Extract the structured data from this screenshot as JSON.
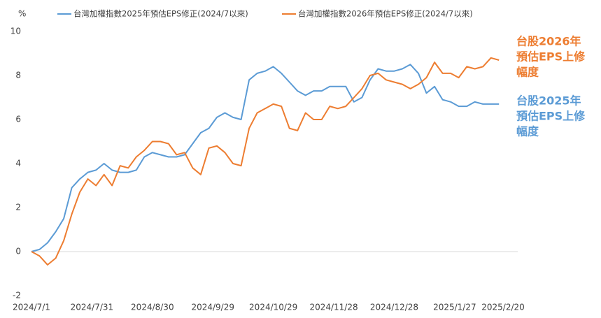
{
  "chart_data": {
    "type": "line",
    "y_unit": "%",
    "x": [
      "2024/7/1",
      "2024/7/5",
      "2024/7/9",
      "2024/7/13",
      "2024/7/17",
      "2024/7/21",
      "2024/7/25",
      "2024/7/29",
      "2024/8/2",
      "2024/8/6",
      "2024/8/10",
      "2024/8/14",
      "2024/8/18",
      "2024/8/22",
      "2024/8/26",
      "2024/8/30",
      "2024/9/3",
      "2024/9/7",
      "2024/9/11",
      "2024/9/15",
      "2024/9/19",
      "2024/9/23",
      "2024/9/27",
      "2024/10/1",
      "2024/10/5",
      "2024/10/9",
      "2024/10/13",
      "2024/10/17",
      "2024/10/21",
      "2024/10/25",
      "2024/10/29",
      "2024/11/2",
      "2024/11/6",
      "2024/11/10",
      "2024/11/14",
      "2024/11/18",
      "2024/11/22",
      "2024/11/26",
      "2024/11/30",
      "2024/12/4",
      "2024/12/8",
      "2024/12/12",
      "2024/12/16",
      "2024/12/20",
      "2024/12/24",
      "2024/12/28",
      "2025/1/1",
      "2025/1/5",
      "2025/1/9",
      "2025/1/13",
      "2025/1/17",
      "2025/1/21",
      "2025/1/25",
      "2025/1/29",
      "2025/2/2",
      "2025/2/6",
      "2025/2/10",
      "2025/2/14",
      "2025/2/18"
    ],
    "series": [
      {
        "name": "台灣加權指數2025年預估EPS修正(2024/7以來)",
        "color": "#5b9bd5",
        "values": [
          0,
          0.1,
          0.4,
          0.9,
          1.5,
          2.9,
          3.3,
          3.6,
          3.7,
          4.0,
          3.7,
          3.6,
          3.6,
          3.7,
          4.3,
          4.5,
          4.4,
          4.3,
          4.3,
          4.4,
          4.9,
          5.4,
          5.6,
          6.1,
          6.3,
          6.1,
          6.0,
          7.8,
          8.1,
          8.2,
          8.4,
          8.1,
          7.7,
          7.3,
          7.1,
          7.3,
          7.3,
          7.5,
          7.5,
          7.5,
          6.8,
          7.0,
          7.8,
          8.3,
          8.2,
          8.2,
          8.3,
          8.5,
          8.1,
          7.2,
          7.5,
          6.9,
          6.8,
          6.6,
          6.6,
          6.8,
          6.7,
          6.7,
          6.7
        ]
      },
      {
        "name": "台灣加權指數2026年預估EPS修正(2024/7以來)",
        "color": "#ed7d31",
        "values": [
          0,
          -0.2,
          -0.6,
          -0.3,
          0.5,
          1.7,
          2.7,
          3.3,
          3.0,
          3.5,
          3.0,
          3.9,
          3.8,
          4.3,
          4.6,
          5.0,
          5.0,
          4.9,
          4.4,
          4.5,
          3.8,
          3.5,
          4.7,
          4.8,
          4.5,
          4.0,
          3.9,
          5.6,
          6.3,
          6.5,
          6.7,
          6.6,
          5.6,
          5.5,
          6.3,
          6.0,
          6.0,
          6.6,
          6.5,
          6.6,
          7.0,
          7.4,
          8.0,
          8.1,
          7.8,
          7.7,
          7.6,
          7.4,
          7.6,
          7.9,
          8.6,
          8.1,
          8.1,
          7.9,
          8.4,
          8.3,
          8.4,
          8.8,
          8.7
        ]
      }
    ],
    "annotations": [
      {
        "lines": [
          "台股2026年",
          "預估EPS上修",
          "幅度"
        ],
        "color": "#ed7d31"
      },
      {
        "lines": [
          "台股2025年",
          "預估EPS上修",
          "幅度"
        ],
        "color": "#5b9bd5"
      }
    ],
    "xlim": [
      "2024/7/1",
      "2025/2/20"
    ],
    "xticks": [
      "2024/7/1",
      "2024/7/31",
      "2024/8/30",
      "2024/9/29",
      "2024/10/29",
      "2024/11/28",
      "2024/12/28",
      "2025/1/27",
      "2025/2/20"
    ],
    "ylim": [
      -2,
      10
    ],
    "yticks": [
      -2,
      0,
      2,
      4,
      6,
      8,
      10
    ],
    "zero_line": true,
    "legend": "top"
  }
}
